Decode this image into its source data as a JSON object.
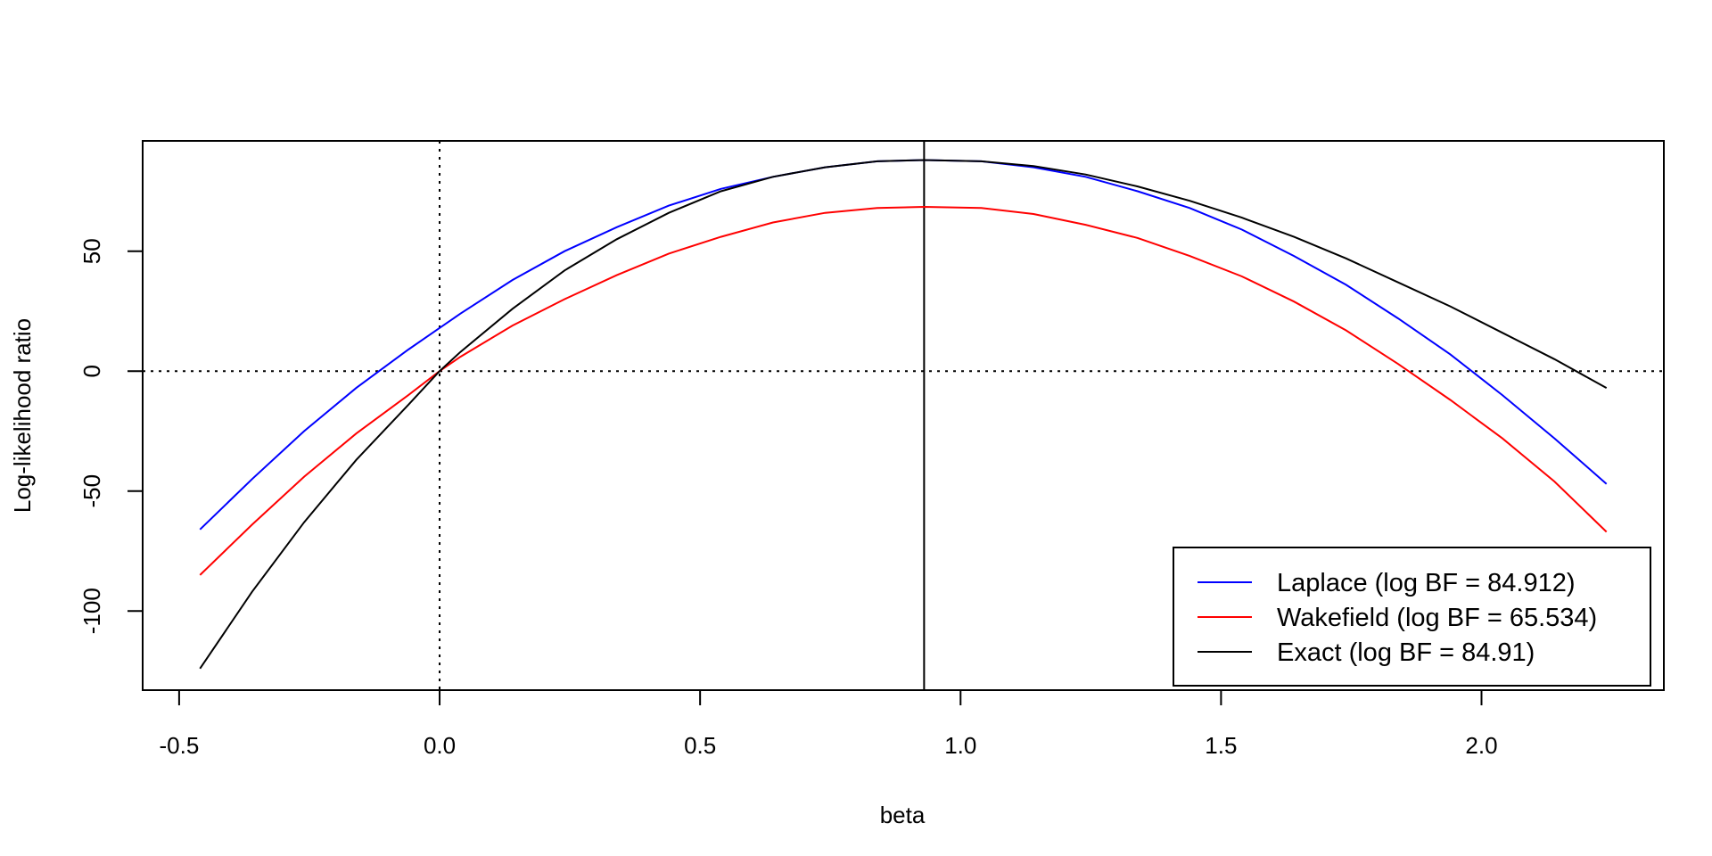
{
  "chart_data": {
    "type": "line",
    "title": "",
    "xlabel": "beta",
    "ylabel": "Log-likelihood ratio",
    "xlim": [
      -0.57,
      2.35
    ],
    "ylim": [
      -133,
      96
    ],
    "x_ticks": [
      -0.5,
      0.0,
      0.5,
      1.0,
      1.5,
      2.0
    ],
    "x_tick_labels": [
      "-0.5",
      "0.0",
      "0.5",
      "1.0",
      "1.5",
      "2.0"
    ],
    "y_ticks": [
      -100,
      -50,
      0,
      50
    ],
    "y_tick_labels": [
      "-100",
      "-50",
      "0",
      "50"
    ],
    "grid": false,
    "reference_lines": {
      "vertical_dotted_x": 0,
      "horizontal_dotted_y": 0,
      "vertical_solid_x": 0.93
    },
    "legend_position": "bottom-right",
    "x": [
      -0.46,
      -0.36,
      -0.26,
      -0.16,
      -0.06,
      0.0,
      0.04,
      0.14,
      0.24,
      0.34,
      0.44,
      0.54,
      0.64,
      0.74,
      0.84,
      0.93,
      1.04,
      1.14,
      1.24,
      1.34,
      1.44,
      1.54,
      1.64,
      1.74,
      1.84,
      1.94,
      2.04,
      2.14,
      2.24
    ],
    "series": [
      {
        "name": "Laplace (log BF = 84.912)",
        "color": "#0000ff",
        "values": [
          -66,
          -45,
          -25,
          -7,
          9,
          18,
          24,
          38,
          50,
          60,
          69,
          76,
          81,
          85,
          87.5,
          88,
          87.5,
          85,
          81,
          75,
          68,
          59,
          48,
          36,
          22,
          7,
          -10,
          -28,
          -47
        ]
      },
      {
        "name": "Wakefield (log BF = 65.534)",
        "color": "#ff0000",
        "values": [
          -85,
          -64,
          -44,
          -26,
          -10,
          0,
          6,
          19,
          30,
          40,
          49,
          56,
          62,
          66,
          68,
          68.5,
          68,
          65.5,
          61,
          55.5,
          48,
          39.5,
          29,
          17,
          3,
          -12,
          -28,
          -46,
          -67
        ]
      },
      {
        "name": "Exact (log BF = 84.91)",
        "color": "#000000",
        "values": [
          -124,
          -92,
          -63,
          -37,
          -14,
          0,
          8,
          26,
          42,
          55,
          66,
          75,
          81,
          85,
          87.5,
          88,
          87.5,
          85.5,
          82,
          77,
          71,
          64,
          56,
          47,
          37,
          27,
          16,
          5,
          -7
        ]
      }
    ]
  }
}
